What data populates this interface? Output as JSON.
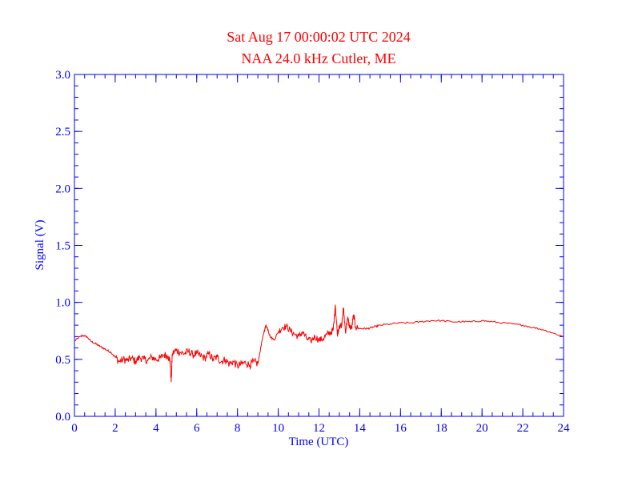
{
  "colors": {
    "axis": "#0000ff",
    "series": "#ff0000",
    "background": "#ffffff"
  },
  "chart_data": {
    "type": "line",
    "title": "Sat Aug 17 00:00:02 UTC 2024",
    "subtitle": "NAA 24.0 kHz Cutler, ME",
    "xlabel": "Time (UTC)",
    "ylabel": "Signal (V)",
    "xlim": [
      0,
      24
    ],
    "ylim": [
      0,
      3.0
    ],
    "xticks": [
      0,
      2,
      4,
      6,
      8,
      10,
      12,
      14,
      16,
      18,
      20,
      22,
      24
    ],
    "xtick_labels": [
      "0",
      "2",
      "4",
      "6",
      "8",
      "10",
      "12",
      "14",
      "16",
      "18",
      "20",
      "22",
      "24"
    ],
    "yticks": [
      0,
      0.5,
      1.0,
      1.5,
      2.0,
      2.5,
      3.0
    ],
    "ytick_labels": [
      "0.0",
      "0.5",
      "1.0",
      "1.5",
      "2.0",
      "2.5",
      "3.0"
    ],
    "x_minor_step": 0.5,
    "y_minor_step": 0.1,
    "series": [
      {
        "name": "NAA 24.0 kHz",
        "x": [
          0,
          0.2,
          0.4,
          0.6,
          0.8,
          1.0,
          1.2,
          1.4,
          1.6,
          1.8,
          2.0,
          2.2,
          2.4,
          2.6,
          2.8,
          3.0,
          3.2,
          3.4,
          3.6,
          3.8,
          4.0,
          4.2,
          4.4,
          4.6,
          4.7,
          4.75,
          4.8,
          5.0,
          5.2,
          5.4,
          5.6,
          5.8,
          6.0,
          6.2,
          6.4,
          6.6,
          6.8,
          7.0,
          7.2,
          7.4,
          7.6,
          7.8,
          8.0,
          8.2,
          8.4,
          8.6,
          8.8,
          9.0,
          9.1,
          9.2,
          9.3,
          9.4,
          9.5,
          9.6,
          9.8,
          10.0,
          10.2,
          10.4,
          10.6,
          10.8,
          11.0,
          11.2,
          11.4,
          11.6,
          11.8,
          12.0,
          12.2,
          12.4,
          12.6,
          12.7,
          12.8,
          12.9,
          13.0,
          13.1,
          13.2,
          13.3,
          13.4,
          13.5,
          13.6,
          13.7,
          13.8,
          14.0,
          14.2,
          14.4,
          14.6,
          14.8,
          15.0,
          15.5,
          16.0,
          16.5,
          17.0,
          17.5,
          18.0,
          18.5,
          19.0,
          19.5,
          20.0,
          20.5,
          21.0,
          21.5,
          22.0,
          22.5,
          23.0,
          23.5,
          24.0
        ],
        "y": [
          0.66,
          0.69,
          0.71,
          0.7,
          0.66,
          0.64,
          0.62,
          0.6,
          0.58,
          0.56,
          0.52,
          0.48,
          0.5,
          0.49,
          0.51,
          0.48,
          0.52,
          0.5,
          0.49,
          0.52,
          0.5,
          0.51,
          0.54,
          0.53,
          0.48,
          0.3,
          0.55,
          0.58,
          0.56,
          0.55,
          0.57,
          0.54,
          0.55,
          0.53,
          0.51,
          0.55,
          0.5,
          0.52,
          0.48,
          0.5,
          0.46,
          0.48,
          0.44,
          0.46,
          0.47,
          0.45,
          0.48,
          0.46,
          0.56,
          0.66,
          0.74,
          0.8,
          0.76,
          0.7,
          0.67,
          0.74,
          0.78,
          0.79,
          0.75,
          0.72,
          0.7,
          0.74,
          0.68,
          0.66,
          0.7,
          0.67,
          0.68,
          0.72,
          0.74,
          0.76,
          0.98,
          0.72,
          0.8,
          0.78,
          0.95,
          0.74,
          0.86,
          0.79,
          0.77,
          0.89,
          0.78,
          0.77,
          0.77,
          0.77,
          0.78,
          0.79,
          0.8,
          0.81,
          0.82,
          0.82,
          0.83,
          0.84,
          0.84,
          0.83,
          0.83,
          0.83,
          0.84,
          0.83,
          0.82,
          0.81,
          0.8,
          0.78,
          0.76,
          0.73,
          0.7
        ]
      }
    ]
  }
}
